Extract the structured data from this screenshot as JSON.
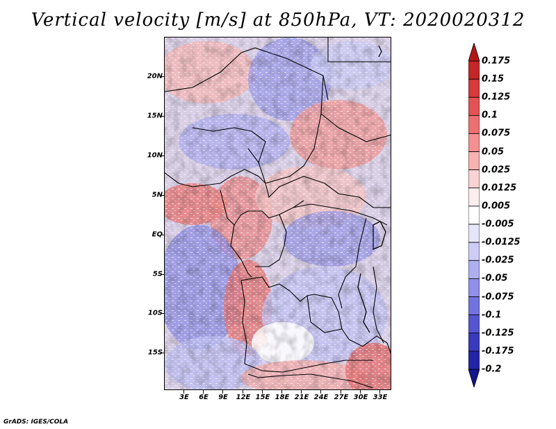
{
  "title": "Vertical velocity [m/s] at 850hPa, VT: 2020020312",
  "credit": "GrADS: IGES/COLA",
  "map": {
    "lat_labels": [
      "20N",
      "15N",
      "10N",
      "5N",
      "EQ",
      "5S",
      "10S",
      "15S"
    ],
    "lon_labels": [
      "3E",
      "6E",
      "9E",
      "12E",
      "15E",
      "18E",
      "21E",
      "24E",
      "27E",
      "30E",
      "33E"
    ]
  },
  "colorbar": {
    "labels": [
      "0.175",
      "0.15",
      "0.125",
      "0.1",
      "0.075",
      "0.05",
      "0.025",
      "0.0125",
      "0.005",
      "-0.005",
      "-0.0125",
      "-0.025",
      "-0.05",
      "-0.075",
      "-0.1",
      "-0.125",
      "-0.175",
      "-0.2"
    ],
    "colors": [
      "#b31616",
      "#c52626",
      "#d63a3a",
      "#e35353",
      "#ec7070",
      "#f39191",
      "#f8b2b2",
      "#fbd3d3",
      "#fdeeee",
      "#ffffff",
      "#e5e5fb",
      "#ccccf7",
      "#aeaef2",
      "#9090ea",
      "#7272df",
      "#5555d1",
      "#3a3abf",
      "#2424a8",
      "#14148c"
    ]
  }
}
